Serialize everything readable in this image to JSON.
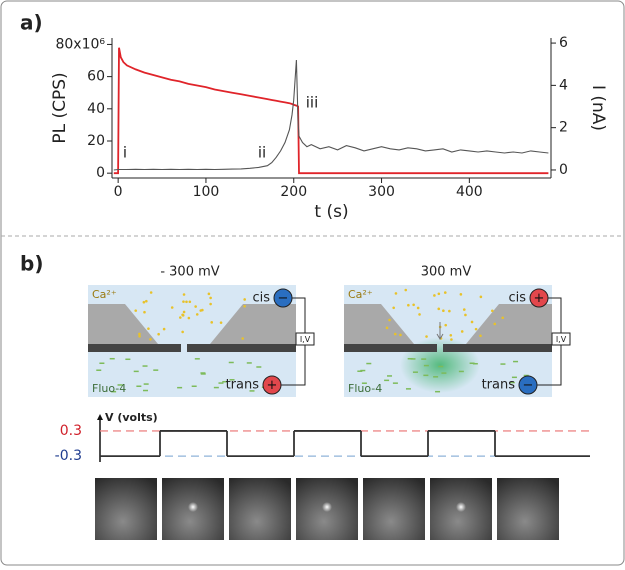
{
  "panel_labels": [
    "a)",
    "b)"
  ],
  "chart_data": [
    {
      "type": "line",
      "x_label": "t (s)",
      "y_label": "PL (CPS)",
      "y2_label": "I (nA)",
      "xlim": [
        -7,
        493
      ],
      "xticks": [
        0,
        100,
        200,
        300,
        400
      ],
      "ylim": [
        -3,
        84
      ],
      "yticks": [
        0,
        20,
        40,
        60,
        {
          "value": 80,
          "label": "80x10⁶"
        }
      ],
      "y2lim": [
        -0.38,
        6.24
      ],
      "y2ticks": [
        0,
        2,
        4,
        6
      ],
      "annotations": [
        "i",
        "ii",
        "iii"
      ],
      "x": [
        -5,
        0,
        1,
        3,
        6,
        10,
        20,
        30,
        40,
        50,
        60,
        70,
        80,
        90,
        100,
        110,
        120,
        130,
        140,
        150,
        160,
        170,
        175,
        180,
        185,
        190,
        195,
        198,
        200,
        203,
        205,
        206,
        210,
        215,
        220,
        230,
        240,
        250,
        260,
        270,
        280,
        290,
        300,
        310,
        320,
        330,
        340,
        350,
        360,
        370,
        380,
        390,
        400,
        410,
        420,
        430,
        440,
        450,
        460,
        470,
        480,
        490
      ],
      "series": [
        {
          "color": "#e0242a",
          "axis": "y",
          "values": [
            0,
            0,
            78,
            72,
            69,
            67,
            64.5,
            62.5,
            61,
            59.5,
            58,
            57,
            55.5,
            54.5,
            53.5,
            52,
            51,
            50,
            49,
            48,
            47,
            46,
            45.5,
            45,
            44.5,
            44,
            43.5,
            43,
            42.5,
            42,
            41.5,
            0,
            0,
            0,
            0,
            0,
            0,
            0,
            0,
            0,
            0,
            0,
            0,
            0,
            0,
            0,
            0,
            0,
            0,
            0,
            0,
            0,
            0,
            0,
            0,
            0,
            0,
            0,
            0,
            0,
            0,
            0
          ]
        },
        {
          "color": "#555555",
          "axis": "y2",
          "values": [
            0,
            0.02,
            0.02,
            0.02,
            0.02,
            0.02,
            0.03,
            0.02,
            0.03,
            0.02,
            0.03,
            0.02,
            0.03,
            0.02,
            0.03,
            0.02,
            0.03,
            0.04,
            0.05,
            0.08,
            0.12,
            0.2,
            0.35,
            0.6,
            0.9,
            1.3,
            1.9,
            2.6,
            3.3,
            5.2,
            2.2,
            1.6,
            1.3,
            1.1,
            1.2,
            1.0,
            1.1,
            0.95,
            1.15,
            1.05,
            0.9,
            1.0,
            1.1,
            1.0,
            0.95,
            1.05,
            1.0,
            0.9,
            0.95,
            1.0,
            0.85,
            0.95,
            0.9,
            0.85,
            0.9,
            0.85,
            0.8,
            0.85,
            0.8,
            0.9,
            0.85,
            0.8
          ]
        }
      ]
    },
    {
      "type": "step",
      "y_label": "V (volts)",
      "ylim": [
        -0.44,
        0.68
      ],
      "yticks": [
        -0.3,
        0.3
      ],
      "tick_colors": [
        "#1f3c8f",
        "#d0202a"
      ],
      "level_colors": [
        "#8fb3d9",
        "#ee8a8a"
      ],
      "color": "#333333",
      "categories": [
        null,
        null,
        null,
        null,
        null,
        null,
        null
      ],
      "values": [
        -0.3,
        0.3,
        -0.3,
        0.3,
        -0.3,
        0.3,
        -0.3
      ]
    }
  ],
  "diagram": {
    "left": {
      "title": "- 300 mV",
      "ion": "Ca²⁺",
      "dye": "Fluo-4",
      "cis": "cis",
      "trans": "trans",
      "meter": "I,V",
      "cis_sign": "−",
      "trans_sign": "+"
    },
    "right": {
      "title": "300 mV",
      "ion": "Ca²⁺",
      "dye": "Fluo-4",
      "cis": "cis",
      "trans": "trans",
      "meter": "I,V",
      "cis_sign": "+",
      "trans_sign": "−"
    }
  }
}
